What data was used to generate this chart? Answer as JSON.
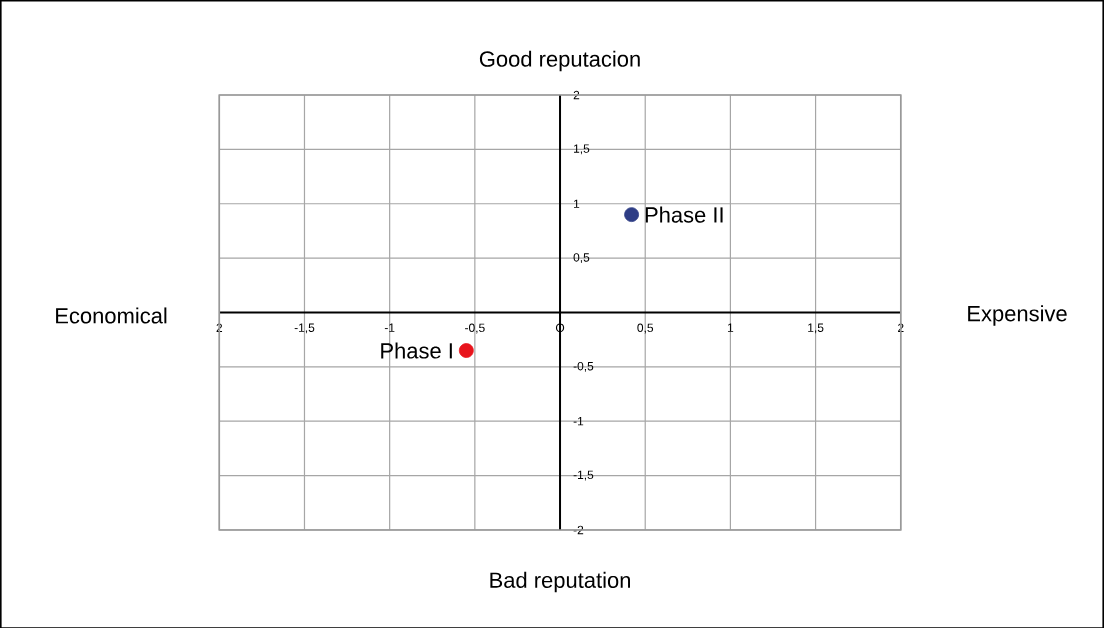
{
  "chart_data": {
    "type": "scatter",
    "annotations": [
      "Good reputacion",
      "Bad reputation",
      "Economical",
      "Expensive"
    ],
    "series": [
      {
        "name": "Phase I",
        "color": "#e8141c",
        "x": [
          -0.55
        ],
        "values": [
          -0.35
        ]
      },
      {
        "name": "Phase II",
        "color": "#2e3d85",
        "x": [
          0.42
        ],
        "values": [
          0.9
        ]
      }
    ],
    "xlim": [
      -2,
      2
    ],
    "ylim": [
      -2,
      2
    ],
    "xticks": [
      {
        "value": -2,
        "label": "2"
      },
      {
        "value": -1.5,
        "label": "-1,5"
      },
      {
        "value": -1,
        "label": "-1"
      },
      {
        "value": -0.5,
        "label": "-0,5"
      },
      {
        "value": 0,
        "label": "O"
      },
      {
        "value": 0.5,
        "label": "0,5"
      },
      1,
      {
        "value": 1.5,
        "label": "1,5"
      },
      2
    ],
    "yticks": [
      {
        "value": -2,
        "label": "-2"
      },
      {
        "value": -1.5,
        "label": "-1,5"
      },
      {
        "value": -1,
        "label": "-1"
      },
      {
        "value": -0.5,
        "label": "-0,5"
      },
      {
        "value": 0.5,
        "label": "0,5"
      },
      1,
      {
        "value": 1.5,
        "label": "1,5"
      },
      2
    ],
    "grid": true,
    "marker": "circle"
  }
}
